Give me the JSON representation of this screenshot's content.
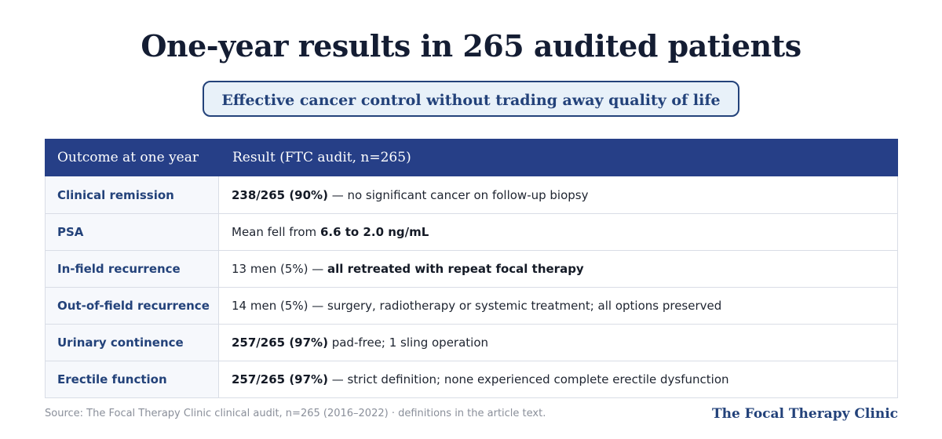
{
  "title": "One-year results in 265 audited patients",
  "subtitle": "Effective cancer control without trading away quality of life",
  "table": {
    "headers": [
      "Outcome at one year",
      "Result (FTC audit, n=265)"
    ],
    "rows": [
      {
        "outcome": "Clinical remission",
        "bold_lead": "238/265 (90%)",
        "text": " — no significant cancer on follow-up biopsy",
        "bold_tail": ""
      },
      {
        "outcome": "PSA",
        "bold_lead": "",
        "text": "Mean fell from ",
        "bold_tail": "6.6 to 2.0 ng/mL"
      },
      {
        "outcome": "In-field recurrence",
        "bold_lead": "",
        "text": "13 men (5%) — ",
        "bold_tail": "all retreated with repeat focal therapy"
      },
      {
        "outcome": "Out-of-field recurrence",
        "bold_lead": "",
        "text": "14 men (5%) — surgery, radiotherapy or systemic treatment; all options preserved",
        "bold_tail": ""
      },
      {
        "outcome": "Urinary continence",
        "bold_lead": "257/265 (97%)",
        "text": " pad-free; 1 sling operation",
        "bold_tail": ""
      },
      {
        "outcome": "Erectile function",
        "bold_lead": "257/265 (97%)",
        "text": " — strict definition; none experienced complete erectile dysfunction",
        "bold_tail": ""
      }
    ]
  },
  "footer": {
    "source": "Source: The Focal Therapy Clinic clinical audit, n=265 (2016–2022) · definitions in the article text.",
    "brand": "The Focal Therapy Clinic"
  },
  "colors": {
    "header_bg": "#263f87",
    "accent": "#23427a",
    "pill_bg": "#e8f1f9"
  }
}
